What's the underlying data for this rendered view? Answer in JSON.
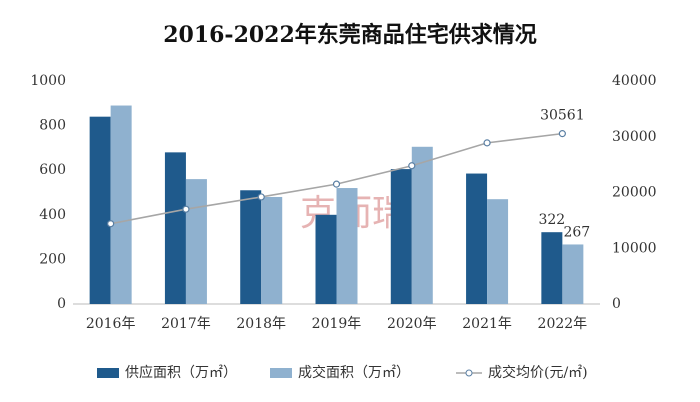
{
  "chart_data": {
    "type": "bar",
    "title": "2016-2022年东莞商品住宅供求情况",
    "watermark": "克而瑞",
    "categories": [
      "2016年",
      "2017年",
      "2018年",
      "2019年",
      "2020年",
      "2021年",
      "2022年"
    ],
    "series": [
      {
        "name": "供应面积（万㎡）",
        "type": "bar",
        "color": "#1f5a8c",
        "values": [
          840,
          680,
          510,
          400,
          605,
          585,
          322
        ]
      },
      {
        "name": "成交面积（万㎡）",
        "type": "bar",
        "color": "#8fb1cf",
        "values": [
          890,
          560,
          480,
          520,
          705,
          470,
          267
        ]
      },
      {
        "name": "成交均价(元/㎡)",
        "type": "line",
        "axis": "y2",
        "color": "#a6a6a6",
        "values": [
          14400,
          17000,
          19200,
          21500,
          24800,
          28900,
          30561
        ]
      }
    ],
    "data_labels": "last",
    "ylim": [
      0,
      1000
    ],
    "yticks": [
      0,
      200,
      400,
      600,
      800,
      1000
    ],
    "y2lim": [
      0,
      40000
    ],
    "y2ticks": [
      0,
      10000,
      20000,
      30000,
      40000
    ],
    "legend": "bottom",
    "grid": false
  }
}
